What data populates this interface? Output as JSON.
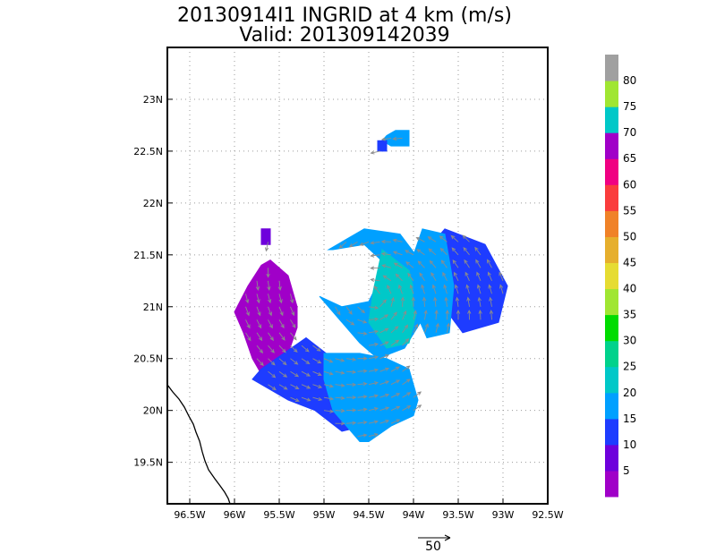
{
  "chart_data": {
    "type": "heatmap",
    "title": "20130914I1 INGRID at 4 km (m/s)",
    "subtitle": "Valid: 201309142039",
    "x_ticks": [
      "96.5W",
      "96W",
      "95.5W",
      "95W",
      "94.5W",
      "94W",
      "93.5W",
      "93W",
      "92.5W"
    ],
    "y_ticks": [
      "23N",
      "22.5N",
      "22N",
      "21.5N",
      "21N",
      "20.5N",
      "20N",
      "19.5N"
    ],
    "xlim": [
      -96.75,
      -92.5
    ],
    "ylim": [
      19.1,
      23.5
    ],
    "grid": true,
    "colorbar_labels": [
      "5",
      "10",
      "15",
      "20",
      "25",
      "30",
      "35",
      "40",
      "45",
      "50",
      "55",
      "60",
      "65",
      "70",
      "75",
      "80"
    ],
    "colorbar_colors": [
      "#a000c8",
      "#6e00dc",
      "#1e3cff",
      "#00a0ff",
      "#00c8c8",
      "#00d28c",
      "#00dc00",
      "#a0e632",
      "#e6dc32",
      "#e6af2d",
      "#f08228",
      "#fa3c3c",
      "#f00082",
      "#a000c8",
      "#00c8c8",
      "#a0e632",
      "#a0a0a0"
    ],
    "reference_vector": {
      "label": "50",
      "speed": 50
    },
    "wind_speed_regions": [
      {
        "name": "westerly-arc",
        "speed_class": 0,
        "lons": [
          -95.6,
          -95.4,
          -95.3,
          -95.3,
          -95.4,
          -95.5,
          -95.7,
          -95.8,
          -95.9,
          -96.0,
          -95.85,
          -95.7
        ],
        "lats": [
          21.45,
          21.3,
          21.0,
          20.8,
          20.55,
          20.35,
          20.35,
          20.5,
          20.75,
          20.95,
          21.2,
          21.4
        ]
      },
      {
        "name": "southwest-band",
        "speed_class": 2,
        "lons": [
          -95.7,
          -95.2,
          -94.9,
          -94.6,
          -94.55,
          -94.8,
          -95.1,
          -95.4,
          -95.6,
          -95.8
        ],
        "lats": [
          20.4,
          20.7,
          20.5,
          20.2,
          19.85,
          19.8,
          20.0,
          20.1,
          20.2,
          20.3
        ]
      },
      {
        "name": "southern-core",
        "speed_class": 3,
        "lons": [
          -95.0,
          -94.6,
          -94.3,
          -94.05,
          -93.95,
          -94.0,
          -94.25,
          -94.5,
          -94.6,
          -94.9,
          -95.0
        ],
        "lats": [
          20.55,
          20.55,
          20.5,
          20.4,
          20.1,
          19.95,
          19.85,
          19.7,
          19.7,
          20.0,
          20.3
        ]
      },
      {
        "name": "eyewall-ring",
        "speed_class": 3,
        "lons": [
          -94.95,
          -94.55,
          -94.15,
          -93.8,
          -93.85,
          -94.1,
          -94.4,
          -94.6,
          -94.85,
          -95.05,
          -94.8,
          -94.5,
          -94.3,
          -94.55,
          -94.9
        ],
        "lats": [
          21.55,
          21.75,
          21.7,
          21.3,
          20.95,
          20.6,
          20.5,
          20.65,
          20.9,
          21.1,
          21.0,
          21.05,
          21.4,
          21.6,
          21.55
        ]
      },
      {
        "name": "eyewall-maximum",
        "speed_class": 4,
        "lons": [
          -94.35,
          -94.05,
          -93.95,
          -94.05,
          -94.3,
          -94.5,
          -94.45,
          -94.35
        ],
        "lats": [
          21.55,
          21.35,
          21.0,
          20.65,
          20.6,
          20.85,
          21.15,
          21.55
        ]
      },
      {
        "name": "eastern-band",
        "speed_class": 2,
        "lons": [
          -93.65,
          -93.2,
          -92.95,
          -93.05,
          -93.45,
          -93.75,
          -93.9
        ],
        "lats": [
          21.75,
          21.6,
          21.2,
          20.85,
          20.75,
          21.1,
          21.5
        ]
      },
      {
        "name": "eastern-lobe",
        "speed_class": 3,
        "lons": [
          -93.9,
          -93.65,
          -93.55,
          -93.6,
          -93.85,
          -94.0,
          -94.0
        ],
        "lats": [
          21.75,
          21.7,
          21.2,
          20.75,
          20.7,
          21.0,
          21.5
        ]
      },
      {
        "name": "north-cell",
        "speed_class": 3,
        "lons": [
          -94.2,
          -94.05,
          -94.05,
          -94.25,
          -94.35,
          -94.3
        ],
        "lats": [
          22.7,
          22.7,
          22.55,
          22.55,
          22.6,
          22.65
        ]
      },
      {
        "name": "north-cell-core",
        "speed_class": 2,
        "lons": [
          -94.4,
          -94.3,
          -94.3,
          -94.4
        ],
        "lats": [
          22.6,
          22.6,
          22.5,
          22.5
        ]
      },
      {
        "name": "isolated-west",
        "speed_class": 1,
        "lons": [
          -95.7,
          -95.6,
          -95.6,
          -95.7
        ],
        "lats": [
          21.75,
          21.75,
          21.6,
          21.6
        ]
      }
    ]
  }
}
